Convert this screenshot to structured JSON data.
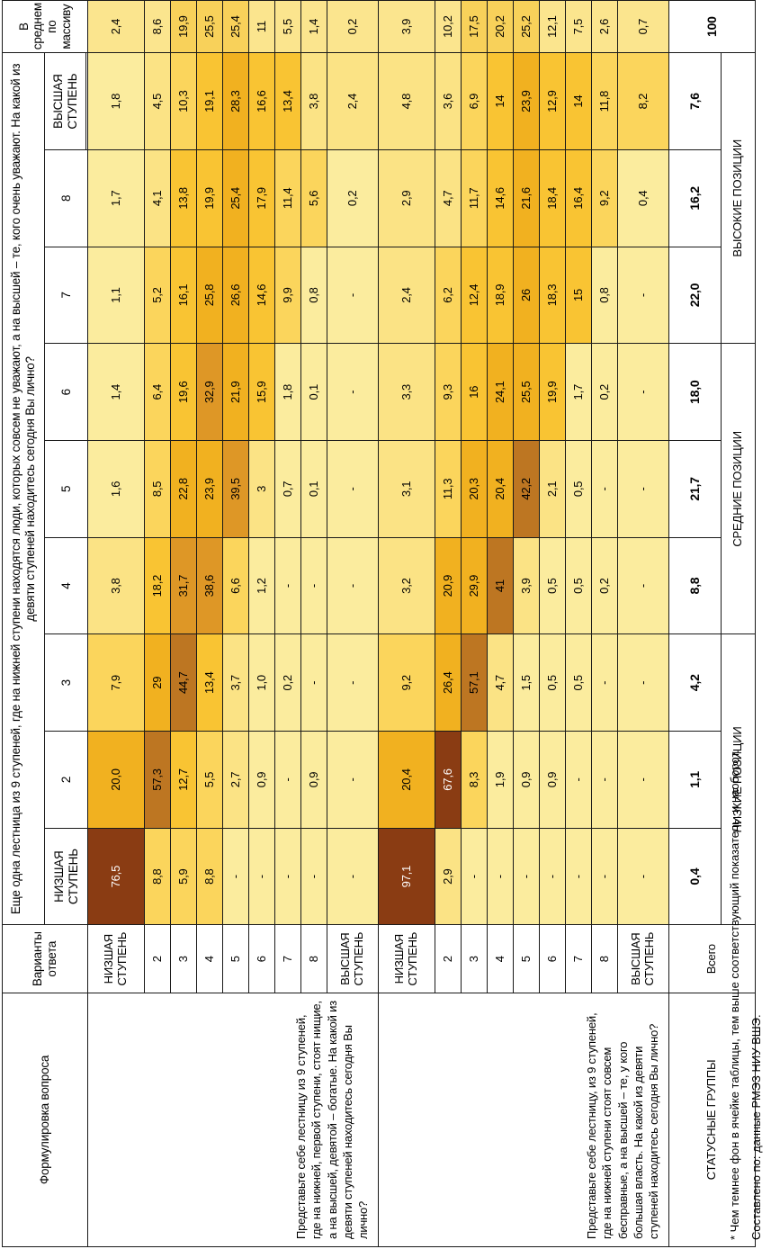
{
  "header": {
    "formulation_label": "Формулировка вопроса",
    "answer_label": "Варианты ответа",
    "main_question": "Еще одна лестница из 9 ступеней, где на нижней ступени находятся люди, которых совсем не уважают, а на высшей – те, кого очень уважают. На какой из девяти ступеней находитесь сегодня Вы лично?",
    "columns": [
      "НИЗШАЯ СТУПЕНЬ",
      "2",
      "3",
      "4",
      "5",
      "6",
      "7",
      "8",
      "ВЫСШАЯ СТУПЕНЬ"
    ],
    "avg_label": "В среднем по массиву"
  },
  "block1": {
    "question": "Представьте себе лестницу из 9 ступеней, где на нижней, первой ступени, стоят нищие, а на высшей, девятой – богатые. На какой из девяти ступеней находитесь сегодня Вы лично?",
    "rows": [
      {
        "label": "НИЗШАЯ СТУПЕНЬ",
        "cells": [
          "76,5",
          "20,0",
          "7,9",
          "3,8",
          "1,6",
          "1,4",
          "1,1",
          "1,7",
          "1,8"
        ],
        "avg": "2,4"
      },
      {
        "label": "2",
        "cells": [
          "8,8",
          "57,3",
          "29",
          "18,2",
          "8,5",
          "6,4",
          "5,2",
          "4,1",
          "4,5"
        ],
        "avg": "8,6"
      },
      {
        "label": "3",
        "cells": [
          "5,9",
          "12,7",
          "44,7",
          "31,7",
          "22,8",
          "19,6",
          "16,1",
          "13,8",
          "10,3"
        ],
        "avg": "19,9"
      },
      {
        "label": "4",
        "cells": [
          "8,8",
          "5,5",
          "13,4",
          "38,6",
          "23,9",
          "32,9",
          "25,8",
          "19,9",
          "19,1"
        ],
        "avg": "25,5"
      },
      {
        "label": "5",
        "cells": [
          "-",
          "2,7",
          "3,7",
          "6,6",
          "39,5",
          "21,9",
          "26,6",
          "25,4",
          "28,3"
        ],
        "avg": "25,4"
      },
      {
        "label": "6",
        "cells": [
          "-",
          "0,9",
          "1,0",
          "1,2",
          "3",
          "15,9",
          "14,6",
          "17,9",
          "16,6"
        ],
        "avg": "11"
      },
      {
        "label": "7",
        "cells": [
          "-",
          "-",
          "0,2",
          "-",
          "0,7",
          "1,8",
          "9,9",
          "11,4",
          "13,4"
        ],
        "avg": "5,5"
      },
      {
        "label": "8",
        "cells": [
          "-",
          "0,9",
          "-",
          "-",
          "0,1",
          "0,1",
          "0,8",
          "5,6",
          "3,8"
        ],
        "avg": "1,4"
      },
      {
        "label": "ВЫСШАЯ СТУПЕНЬ",
        "cells": [
          "-",
          "-",
          "-",
          "-",
          "-",
          "-",
          "-",
          "0,2",
          "2,4"
        ],
        "avg": "0,2"
      }
    ]
  },
  "block2": {
    "question": "Представьте себе лестницу, из 9 ступеней, где на нижней ступени стоят совсем бесправные, а на высшей – те, у кого большая власть. На какой из девяти ступеней находитесь сегодня Вы лично?",
    "rows": [
      {
        "label": "НИЗШАЯ СТУПЕНЬ",
        "cells": [
          "97,1",
          "20,4",
          "9,2",
          "3,2",
          "3,1",
          "3,3",
          "2,4",
          "2,9",
          "4,8"
        ],
        "avg": "3,9"
      },
      {
        "label": "2",
        "cells": [
          "2,9",
          "67,6",
          "26,4",
          "20,9",
          "11,3",
          "9,3",
          "6,2",
          "4,7",
          "3,6"
        ],
        "avg": "10,2"
      },
      {
        "label": "3",
        "cells": [
          "-",
          "8,3",
          "57,1",
          "29,9",
          "20,3",
          "16",
          "12,4",
          "11,7",
          "6,9"
        ],
        "avg": "17,5"
      },
      {
        "label": "4",
        "cells": [
          "-",
          "1,9",
          "4,7",
          "41",
          "20,4",
          "24,1",
          "18,9",
          "14,6",
          "14"
        ],
        "avg": "20,2"
      },
      {
        "label": "5",
        "cells": [
          "-",
          "0,9",
          "1,5",
          "3,9",
          "42,2",
          "25,5",
          "26",
          "21,6",
          "23,9"
        ],
        "avg": "25,2"
      },
      {
        "label": "6",
        "cells": [
          "-",
          "0,9",
          "0,5",
          "0,5",
          "2,1",
          "19,9",
          "18,3",
          "18,4",
          "12,9"
        ],
        "avg": "12,1"
      },
      {
        "label": "7",
        "cells": [
          "-",
          "-",
          "0,5",
          "0,5",
          "0,5",
          "1,7",
          "15",
          "16,4",
          "14"
        ],
        "avg": "7,5"
      },
      {
        "label": "8",
        "cells": [
          "-",
          "-",
          "-",
          "0,2",
          "-",
          "0,2",
          "0,8",
          "9,2",
          "11,8"
        ],
        "avg": "2,6"
      },
      {
        "label": "ВЫСШАЯ СТУПЕНЬ",
        "cells": [
          "-",
          "-",
          "-",
          "-",
          "-",
          "-",
          "-",
          "0,4",
          "8,2"
        ],
        "avg": "0,7"
      }
    ]
  },
  "totals": {
    "label": "Всего",
    "cells": [
      "0,4",
      "1,1",
      "4,2",
      "8,8",
      "21,7",
      "18,0",
      "22,0",
      "16,2",
      "7,6"
    ],
    "avg": "100"
  },
  "status": {
    "label": "СТАТУСНЫЕ ГРУППЫ",
    "groups": [
      "НИЗКИЕ ПОЗИЦИИ",
      "СРЕДНИЕ ПОЗИЦИИ",
      "ВЫСОКИЕ ПОЗИЦИИ"
    ]
  },
  "footnotes": [
    "* Чем темнее фон в ячейке таблицы, тем выше соответствующий показатель, и наоборот.",
    "Составлено по: данные РМЭЗ НИУ ВШЭ."
  ],
  "colors": {
    "shade_1": "#fbec9e",
    "shade_2": "#fbe385",
    "shade_3": "#fbd55c",
    "shade_4": "#f9c433",
    "shade_5": "#f1b120",
    "shade_6": "#de9726",
    "shade_7": "#bd7622",
    "shade_8": "#8a3c13",
    "avg_light": "#fbe58e",
    "avg_mid": "#f8d15a"
  }
}
